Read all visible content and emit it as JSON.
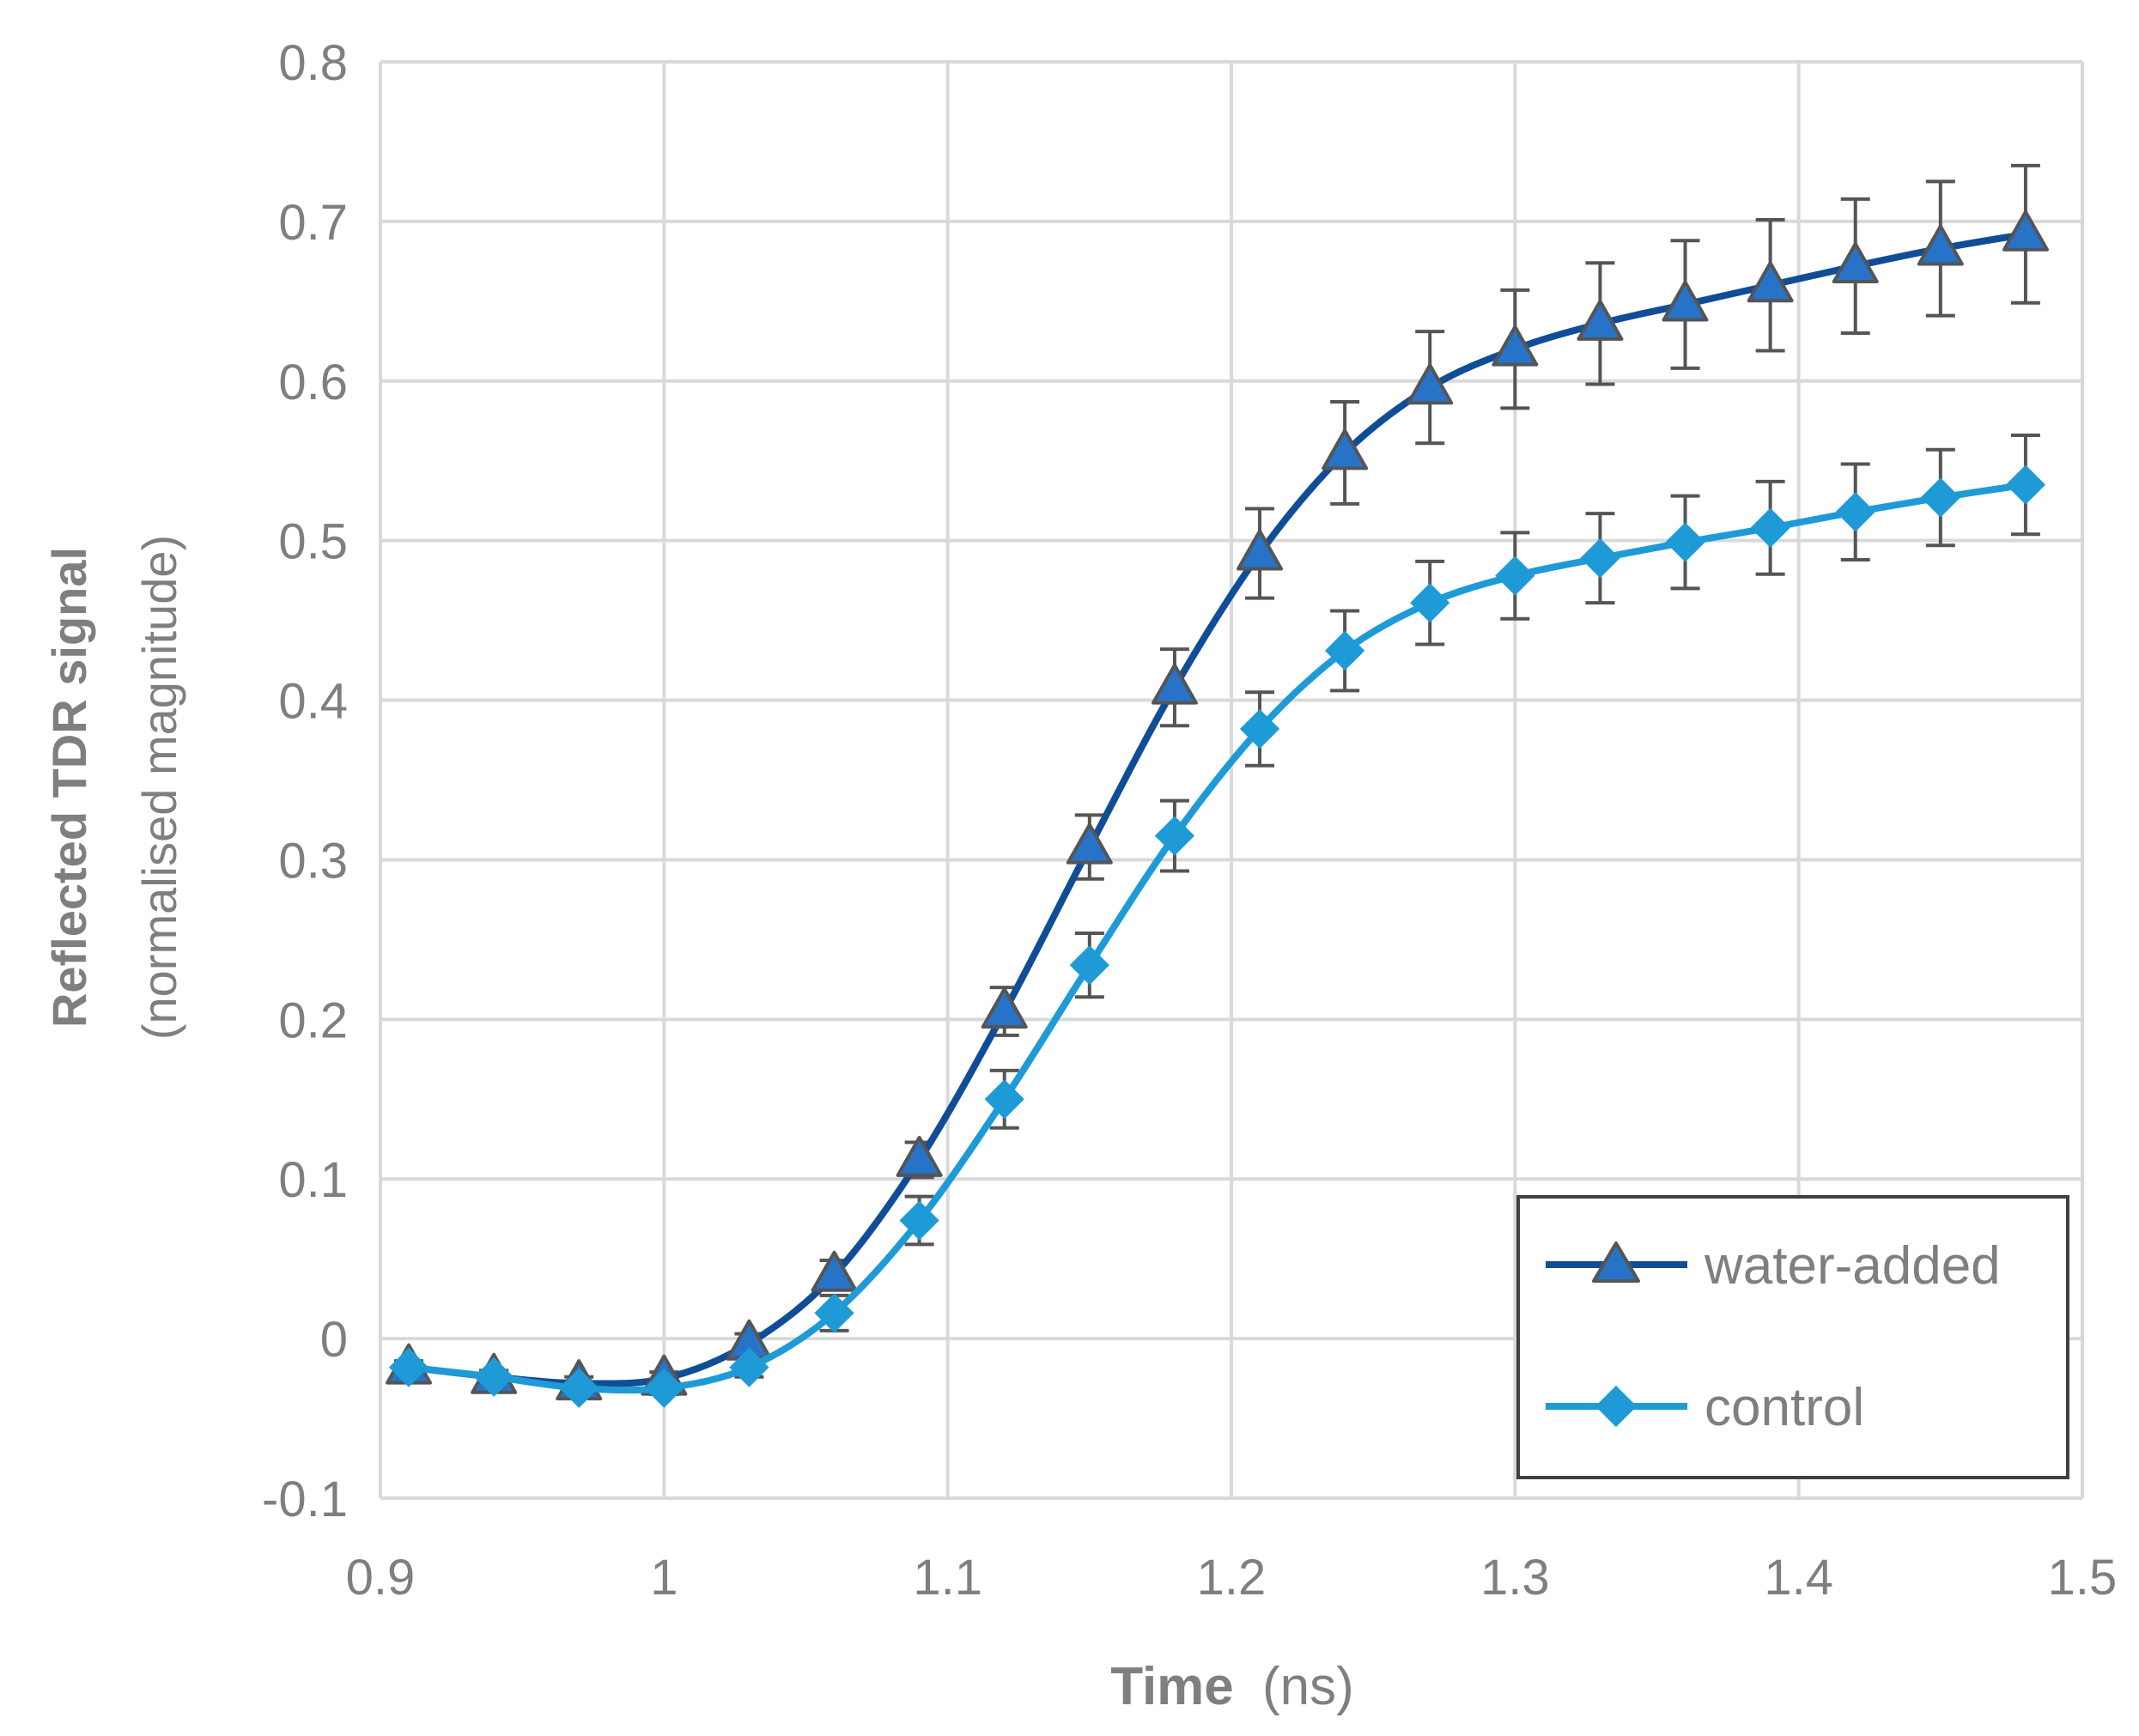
{
  "chart_data": {
    "type": "line",
    "title": "",
    "xlabel": {
      "bold": "Time",
      "normal": "(ns)"
    },
    "ylabel": {
      "line1": "Reflected TDR signal",
      "line2": "(normalised magnitude)"
    },
    "xlim": [
      0.9,
      1.5
    ],
    "ylim": [
      -0.1,
      0.8
    ],
    "xticks": [
      0.9,
      1,
      1.1,
      1.2,
      1.3,
      1.4,
      1.5
    ],
    "xtick_labels": [
      "0.9",
      "1",
      "1.1",
      "1.2",
      "1.3",
      "1.4",
      "1.5"
    ],
    "yticks": [
      -0.1,
      0,
      0.1,
      0.2,
      0.3,
      0.4,
      0.5,
      0.6,
      0.7,
      0.8
    ],
    "ytick_labels": [
      "-0.1",
      "0",
      "0.1",
      "0.2",
      "0.3",
      "0.4",
      "0.5",
      "0.6",
      "0.7",
      "0.8"
    ],
    "grid": true,
    "legend_position": "bottom-right",
    "x": [
      0.91,
      0.94,
      0.97,
      1.0,
      1.03,
      1.06,
      1.09,
      1.12,
      1.15,
      1.18,
      1.21,
      1.24,
      1.27,
      1.3,
      1.33,
      1.36,
      1.39,
      1.42,
      1.45,
      1.48
    ],
    "series": [
      {
        "name": "water-added",
        "marker": "triangle",
        "line_color": "#0F4E96",
        "marker_fill": "#2673C8",
        "marker_edge": "#555555",
        "values": [
          -0.018,
          -0.024,
          -0.028,
          -0.025,
          -0.003,
          0.04,
          0.112,
          0.205,
          0.308,
          0.408,
          0.492,
          0.555,
          0.596,
          0.62,
          0.636,
          0.648,
          0.66,
          0.672,
          0.683,
          0.692
        ],
        "errors": [
          0.004,
          0.004,
          0.004,
          0.004,
          0.006,
          0.009,
          0.011,
          0.015,
          0.02,
          0.024,
          0.028,
          0.032,
          0.035,
          0.037,
          0.038,
          0.04,
          0.041,
          0.042,
          0.042,
          0.043
        ]
      },
      {
        "name": "control",
        "marker": "diamond",
        "line_color": "#1E9BD7",
        "marker_fill": "#1E9BD7",
        "marker_edge": "#1E9BD7",
        "values": [
          -0.018,
          -0.024,
          -0.031,
          -0.031,
          -0.018,
          0.016,
          0.074,
          0.15,
          0.234,
          0.315,
          0.382,
          0.431,
          0.461,
          0.478,
          0.489,
          0.499,
          0.508,
          0.518,
          0.527,
          0.535
        ],
        "errors": [
          0.003,
          0.003,
          0.003,
          0.004,
          0.006,
          0.011,
          0.015,
          0.018,
          0.02,
          0.022,
          0.023,
          0.025,
          0.026,
          0.027,
          0.028,
          0.029,
          0.029,
          0.03,
          0.03,
          0.031
        ]
      }
    ]
  }
}
